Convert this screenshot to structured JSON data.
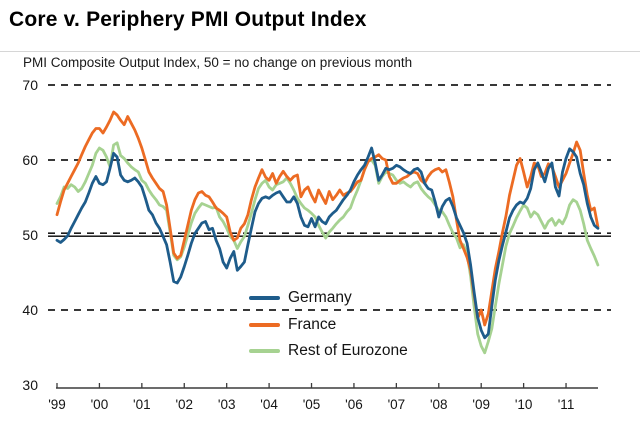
{
  "page": {
    "title": "Core v. Periphery PMI Output Index",
    "subtitle": "PMI Composite Output Index, 50 = no change on previous month"
  },
  "colors": {
    "background": "#ffffff",
    "grid": "#1c1c1c",
    "axis": "#3c3c3c",
    "reference_line": "#000000",
    "text": "#141414"
  },
  "chart_data": {
    "type": "line",
    "frequency": "monthly",
    "x_start": "1999-01",
    "x_end": "2011-10",
    "x_tick_labels": [
      "'99",
      "'00",
      "'01",
      "'02",
      "'03",
      "'04",
      "'05",
      "'06",
      "'07",
      "'08",
      "'09",
      "'10",
      "'11"
    ],
    "y_ticks": [
      70,
      60,
      50,
      40,
      30
    ],
    "ylim": [
      30,
      70
    ],
    "reference_line_value": 50,
    "dashed_gridline_values": [
      70,
      60,
      50,
      40
    ],
    "grid": "dashed-horizontal",
    "legend_position": "inside-bottom-left",
    "series": [
      {
        "name": "Germany",
        "color": "#1e5c8b",
        "values": [
          49.3,
          49.0,
          49.4,
          49.9,
          50.9,
          51.8,
          52.7,
          53.6,
          54.4,
          55.6,
          56.9,
          57.8,
          56.9,
          56.7,
          57.1,
          58.9,
          60.9,
          60.4,
          58.0,
          57.3,
          57.1,
          57.3,
          57.6,
          57.1,
          56.4,
          54.9,
          53.3,
          52.7,
          51.6,
          50.9,
          49.8,
          48.7,
          46.4,
          43.8,
          43.6,
          44.4,
          45.8,
          47.3,
          48.9,
          50.2,
          50.9,
          51.6,
          51.8,
          50.7,
          50.9,
          49.3,
          48.2,
          46.4,
          45.6,
          46.9,
          47.8,
          45.3,
          45.8,
          46.4,
          48.7,
          50.9,
          53.1,
          54.2,
          54.9,
          55.1,
          54.9,
          55.3,
          55.6,
          55.8,
          55.1,
          54.4,
          54.4,
          55.1,
          54.2,
          52.4,
          51.3,
          51.1,
          52.2,
          51.1,
          52.4,
          51.8,
          51.5,
          52.4,
          52.9,
          53.3,
          54.0,
          54.7,
          55.3,
          56.0,
          57.1,
          58.0,
          58.7,
          59.3,
          60.4,
          61.6,
          59.6,
          57.3,
          58.0,
          58.9,
          58.7,
          58.9,
          59.3,
          59.1,
          58.7,
          58.4,
          58.2,
          58.7,
          58.9,
          58.4,
          56.9,
          56.2,
          56.0,
          54.4,
          52.4,
          53.8,
          54.6,
          54.9,
          53.8,
          52.3,
          51.3,
          50.3,
          48.9,
          46.0,
          42.4,
          39.0,
          37.3,
          36.3,
          36.8,
          40.5,
          44.0,
          46.6,
          48.6,
          50.4,
          52.3,
          53.3,
          54.0,
          54.4,
          54.2,
          54.9,
          56.2,
          58.7,
          59.6,
          58.4,
          57.1,
          58.9,
          59.6,
          56.4,
          55.2,
          58.4,
          60.2,
          61.5,
          61.1,
          60.4,
          58.2,
          56.7,
          54.2,
          52.4,
          51.3,
          50.9
        ]
      },
      {
        "name": "France",
        "color": "#ec6b23",
        "values": [
          52.7,
          54.4,
          56.0,
          56.9,
          57.8,
          58.7,
          59.6,
          60.7,
          61.8,
          62.7,
          63.6,
          64.2,
          64.2,
          63.6,
          64.4,
          65.3,
          66.4,
          66.0,
          65.3,
          64.7,
          65.8,
          64.9,
          64.0,
          62.9,
          61.6,
          60.0,
          58.4,
          57.6,
          56.9,
          56.2,
          55.8,
          54.0,
          50.9,
          47.6,
          46.9,
          47.3,
          49.3,
          51.3,
          53.3,
          54.7,
          55.6,
          55.8,
          55.3,
          55.1,
          54.4,
          53.6,
          53.3,
          52.9,
          52.4,
          50.4,
          49.3,
          49.6,
          50.9,
          51.5,
          52.7,
          54.7,
          56.4,
          57.6,
          58.7,
          57.7,
          57.3,
          58.2,
          56.9,
          57.8,
          58.5,
          57.8,
          57.3,
          57.8,
          58.0,
          55.1,
          56.0,
          56.4,
          55.3,
          54.4,
          56.0,
          55.1,
          54.2,
          55.8,
          54.7,
          55.3,
          56.0,
          55.3,
          55.6,
          55.8,
          56.4,
          57.1,
          57.3,
          58.7,
          59.8,
          60.2,
          60.4,
          60.7,
          60.2,
          60.0,
          57.8,
          56.9,
          56.9,
          57.3,
          57.6,
          57.8,
          58.2,
          58.4,
          58.2,
          57.3,
          56.9,
          57.8,
          58.4,
          58.7,
          58.9,
          58.4,
          58.7,
          57.0,
          55.1,
          52.0,
          49.3,
          48.2,
          47.0,
          45.3,
          42.0,
          38.9,
          40.0,
          38.0,
          39.5,
          42.5,
          45.5,
          47.8,
          50.3,
          52.5,
          55.3,
          57.3,
          59.3,
          60.2,
          58.4,
          56.4,
          57.8,
          59.6,
          59.3,
          57.8,
          58.2,
          59.5,
          59.1,
          57.8,
          56.4,
          57.3,
          58.2,
          59.6,
          60.9,
          62.4,
          61.3,
          58.2,
          55.3,
          53.3,
          53.6,
          51.1
        ]
      },
      {
        "name": "Rest of Eurozone",
        "color": "#a6d291",
        "values": [
          54.2,
          55.1,
          56.4,
          56.2,
          56.7,
          56.4,
          55.8,
          56.2,
          57.1,
          58.2,
          59.3,
          60.9,
          61.6,
          61.3,
          60.4,
          59.1,
          62.0,
          62.3,
          60.6,
          60.2,
          59.6,
          59.1,
          58.7,
          58.4,
          57.3,
          56.9,
          56.0,
          55.3,
          54.7,
          54.0,
          53.8,
          53.3,
          50.4,
          47.3,
          46.7,
          47.1,
          48.4,
          50.0,
          51.6,
          52.9,
          53.6,
          54.2,
          54.0,
          53.8,
          53.6,
          53.7,
          52.4,
          51.8,
          50.9,
          49.8,
          49.3,
          48.2,
          49.1,
          49.8,
          51.3,
          52.9,
          54.7,
          56.2,
          56.9,
          57.3,
          56.4,
          56.0,
          56.7,
          56.9,
          57.1,
          57.6,
          56.9,
          56.0,
          54.9,
          54.2,
          53.6,
          53.3,
          52.9,
          52.4,
          51.3,
          50.4,
          49.6,
          50.4,
          50.9,
          51.5,
          52.0,
          52.4,
          53.1,
          53.6,
          54.9,
          56.0,
          57.3,
          58.7,
          59.8,
          60.0,
          59.3,
          56.9,
          57.8,
          58.4,
          58.2,
          58.0,
          57.3,
          56.9,
          57.1,
          56.7,
          56.4,
          56.9,
          57.1,
          56.2,
          55.6,
          55.1,
          54.7,
          54.0,
          53.3,
          53.1,
          52.4,
          51.3,
          50.3,
          49.6,
          48.3,
          48.7,
          47.5,
          44.5,
          40.5,
          36.8,
          35.2,
          34.3,
          35.8,
          37.5,
          40.5,
          43.5,
          46.0,
          48.5,
          50.2,
          51.2,
          52.3,
          53.2,
          54.0,
          53.6,
          52.4,
          53.1,
          52.7,
          51.8,
          50.9,
          51.8,
          52.2,
          51.3,
          52.0,
          51.5,
          52.4,
          54.0,
          54.7,
          54.4,
          53.3,
          51.5,
          49.3,
          48.2,
          47.2,
          46.0
        ]
      }
    ]
  }
}
